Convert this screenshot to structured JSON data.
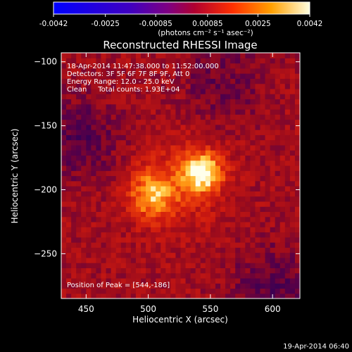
{
  "colorbar": {
    "tick_labels": [
      "-0.0042",
      "-0.0025",
      "-0.00085",
      "0.00085",
      "0.0025",
      "0.0042"
    ],
    "tick_values": [
      -0.0042,
      -0.0025,
      -0.00085,
      0.00085,
      0.0025,
      0.0042
    ],
    "range": [
      -0.0042,
      0.0042
    ],
    "units": "(photons cm⁻² s⁻¹ asec⁻²)",
    "colormap": "blue-purple-red-yellow-white"
  },
  "chart_data": {
    "type": "heatmap",
    "title": "Reconstructed RHESSI Image",
    "xlabel": "Heliocentric X (arcsec)",
    "ylabel": "Heliocentric Y (arcsec)",
    "xlim": [
      430,
      622
    ],
    "ylim": [
      -285,
      -93
    ],
    "x_ticks": [
      450,
      500,
      550,
      600
    ],
    "x_tick_labels": [
      "450",
      "500",
      "550",
      "600"
    ],
    "y_ticks": [
      -100,
      -150,
      -200,
      -250
    ],
    "y_tick_labels": [
      "−100",
      "−150",
      "−200",
      "−250"
    ],
    "sources": [
      {
        "x": 544,
        "y": -186,
        "peak": 0.0042
      },
      {
        "x": 503,
        "y": -204,
        "peak": 0.0034
      }
    ],
    "info_lines": [
      "18-Apr-2014 11:47:38.000 to 11:52:00.000",
      "Detectors: 3F 5F 6F 7F 8F 9F, Att 0",
      "Energy Range: 12.0 - 25.0 keV",
      "Clean     Total counts: 1.93E+04"
    ],
    "peak_label": "Position of Peak = [544,-186]",
    "peak": [
      544,
      -186
    ]
  },
  "timestamp": "19-Apr-2014 06:40",
  "colors": {
    "background": "#000000",
    "axis": "#ffffff",
    "text": "#ffffff"
  }
}
